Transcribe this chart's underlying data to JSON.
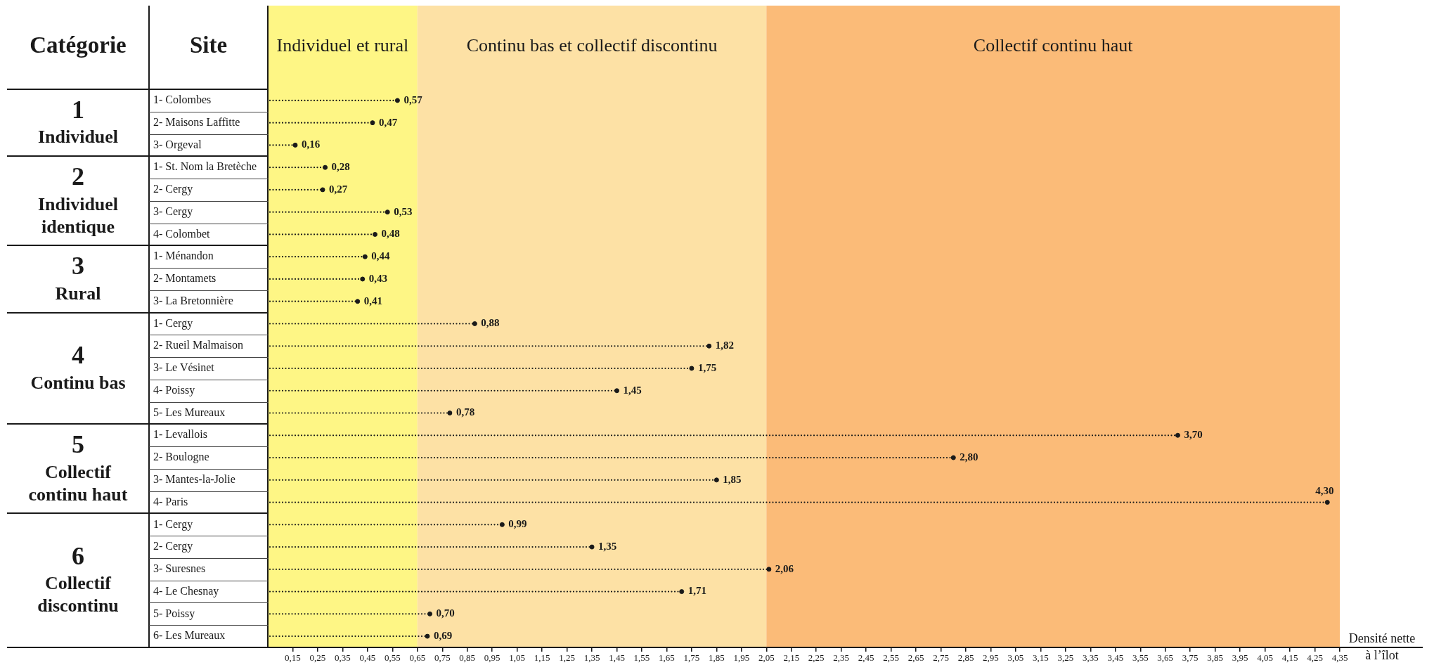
{
  "chart_data": {
    "type": "lollipop",
    "orientation": "horizontal",
    "ylabel": "Site",
    "xlabel": "Densité nette\nà l’îlot",
    "annotations": [
      "Catégorie",
      "1\nIndividuel",
      "2\nIndividuel\nidentique",
      "3\nRural",
      "4\nContinu bas",
      "5\nCollectif\ncontinu haut",
      "6\nCollectif\ndiscontinu"
    ],
    "categories": [
      "1- Colombes",
      "2- Maisons Laffitte",
      "3- Orgeval",
      "1- St. Nom la Bretèche",
      "2- Cergy",
      "3- Cergy",
      "4- Colombet",
      "1- Ménandon",
      "2- Montamets",
      "3- La Bretonnière",
      "1- Cergy",
      "2- Rueil Malmaison",
      "3- Le Vésinet",
      "4- Poissy",
      "5- Les Mureaux",
      "1- Levallois",
      "2- Boulogne",
      "3- Mantes-la-Jolie",
      "4- Paris",
      "1- Cergy",
      "2- Cergy",
      "3- Suresnes",
      "4- Le Chesnay",
      "5- Poissy",
      "6- Les Mureaux"
    ],
    "series": [
      {
        "color": "#1a1a1a",
        "values": [
          0.57,
          0.47,
          0.16,
          null,
          null,
          null,
          null,
          null,
          null,
          null,
          null,
          null,
          null,
          null,
          null,
          null,
          null,
          null,
          null,
          null,
          null,
          null,
          null,
          null,
          null
        ],
        "value_labels": [
          "0,57",
          "0,47",
          "0,16",
          null,
          null,
          null,
          null,
          null,
          null,
          null,
          null,
          null,
          null,
          null,
          null,
          null,
          null,
          null,
          null,
          null,
          null,
          null,
          null,
          null,
          null
        ]
      },
      {
        "color": "#1a1a1a",
        "values": [
          null,
          null,
          null,
          0.28,
          0.27,
          0.53,
          0.48,
          null,
          null,
          null,
          null,
          null,
          null,
          null,
          null,
          null,
          null,
          null,
          null,
          null,
          null,
          null,
          null,
          null,
          null
        ],
        "value_labels": [
          null,
          null,
          null,
          "0,28",
          "0,27",
          "0,53",
          "0,48",
          null,
          null,
          null,
          null,
          null,
          null,
          null,
          null,
          null,
          null,
          null,
          null,
          null,
          null,
          null,
          null,
          null,
          null
        ]
      },
      {
        "color": "#1a1a1a",
        "values": [
          null,
          null,
          null,
          null,
          null,
          null,
          null,
          0.44,
          0.43,
          0.41,
          null,
          null,
          null,
          null,
          null,
          null,
          null,
          null,
          null,
          null,
          null,
          null,
          null,
          null,
          null
        ],
        "value_labels": [
          null,
          null,
          null,
          null,
          null,
          null,
          null,
          "0,44",
          "0,43",
          "0,41",
          null,
          null,
          null,
          null,
          null,
          null,
          null,
          null,
          null,
          null,
          null,
          null,
          null,
          null,
          null
        ]
      },
      {
        "color": "#1a1a1a",
        "values": [
          null,
          null,
          null,
          null,
          null,
          null,
          null,
          null,
          null,
          null,
          0.88,
          1.82,
          1.75,
          1.45,
          0.78,
          null,
          null,
          null,
          null,
          null,
          null,
          null,
          null,
          null,
          null
        ],
        "value_labels": [
          null,
          null,
          null,
          null,
          null,
          null,
          null,
          null,
          null,
          null,
          "0,88",
          "1,82",
          "1,75",
          "1,45",
          "0,78",
          null,
          null,
          null,
          null,
          null,
          null,
          null,
          null,
          null,
          null
        ]
      },
      {
        "color": "#1a1a1a",
        "values": [
          null,
          null,
          null,
          null,
          null,
          null,
          null,
          null,
          null,
          null,
          null,
          null,
          null,
          null,
          null,
          3.7,
          2.8,
          1.85,
          4.3,
          null,
          null,
          null,
          null,
          null,
          null
        ],
        "value_labels": [
          null,
          null,
          null,
          null,
          null,
          null,
          null,
          null,
          null,
          null,
          null,
          null,
          null,
          null,
          null,
          "3,70",
          "2,80",
          "1,85",
          "4,30",
          null,
          null,
          null,
          null,
          null,
          null
        ]
      },
      {
        "color": "#1a1a1a",
        "values": [
          null,
          null,
          null,
          null,
          null,
          null,
          null,
          null,
          null,
          null,
          null,
          null,
          null,
          null,
          null,
          null,
          null,
          null,
          null,
          0.99,
          1.35,
          2.06,
          1.71,
          0.7,
          0.69
        ],
        "value_labels": [
          null,
          null,
          null,
          null,
          null,
          null,
          null,
          null,
          null,
          null,
          null,
          null,
          null,
          null,
          null,
          null,
          null,
          null,
          null,
          "0,99",
          "1,35",
          "2,06",
          "1,71",
          "0,70",
          "0,69"
        ]
      }
    ],
    "xlim": [
      0.05,
      4.35
    ],
    "xticks": [
      {
        "value": 0.15,
        "label": "0,15"
      },
      {
        "value": 0.25,
        "label": "0,25"
      },
      {
        "value": 0.35,
        "label": "0,35"
      },
      {
        "value": 0.45,
        "label": "0,45"
      },
      {
        "value": 0.55,
        "label": "0,55"
      },
      {
        "value": 0.65,
        "label": "0,65"
      },
      {
        "value": 0.75,
        "label": "0,75"
      },
      {
        "value": 0.85,
        "label": "0,85"
      },
      {
        "value": 0.95,
        "label": "0,95"
      },
      {
        "value": 1.05,
        "label": "1,05"
      },
      {
        "value": 1.15,
        "label": "1,15"
      },
      {
        "value": 1.25,
        "label": "1,25"
      },
      {
        "value": 1.35,
        "label": "1,35"
      },
      {
        "value": 1.45,
        "label": "1,45"
      },
      {
        "value": 1.55,
        "label": "1,55"
      },
      {
        "value": 1.65,
        "label": "1,65"
      },
      {
        "value": 1.75,
        "label": "1,75"
      },
      {
        "value": 1.85,
        "label": "1,85"
      },
      {
        "value": 1.95,
        "label": "1,95"
      },
      {
        "value": 2.05,
        "label": "2,05"
      },
      {
        "value": 2.15,
        "label": "2,15"
      },
      {
        "value": 2.25,
        "label": "2,25"
      },
      {
        "value": 2.35,
        "label": "2,35"
      },
      {
        "value": 2.45,
        "label": "2,45"
      },
      {
        "value": 2.55,
        "label": "2,55"
      },
      {
        "value": 2.65,
        "label": "2,65"
      },
      {
        "value": 2.75,
        "label": "2,75"
      },
      {
        "value": 2.85,
        "label": "2,85"
      },
      {
        "value": 2.95,
        "label": "2,95"
      },
      {
        "value": 3.05,
        "label": "3,05"
      },
      {
        "value": 3.15,
        "label": "3,15"
      },
      {
        "value": 3.25,
        "label": "3,25"
      },
      {
        "value": 3.35,
        "label": "3,35"
      },
      {
        "value": 3.45,
        "label": "3,45"
      },
      {
        "value": 3.55,
        "label": "3,55"
      },
      {
        "value": 3.65,
        "label": "3,65"
      },
      {
        "value": 3.75,
        "label": "3,75"
      },
      {
        "value": 3.85,
        "label": "3,85"
      },
      {
        "value": 3.95,
        "label": "3,95"
      },
      {
        "value": 4.05,
        "label": "4,05"
      },
      {
        "value": 4.15,
        "label": "4,15"
      },
      {
        "value": 4.25,
        "label": "4,25"
      },
      {
        "value": 4.35,
        "label": "4,35"
      }
    ],
    "bands": [
      {
        "axis": "x",
        "from": 0.05,
        "to": 0.65,
        "label": "Individuel et rural",
        "color": "#fef685"
      },
      {
        "axis": "x",
        "from": 0.65,
        "to": 2.05,
        "label": "Continu bas et collectif discontinu",
        "color": "#fde1a5"
      },
      {
        "axis": "x",
        "from": 2.05,
        "to": 4.35,
        "label": "Collectif continu haut",
        "color": "#fbbb78"
      }
    ],
    "marker": "circle",
    "line_style": "dotted"
  }
}
